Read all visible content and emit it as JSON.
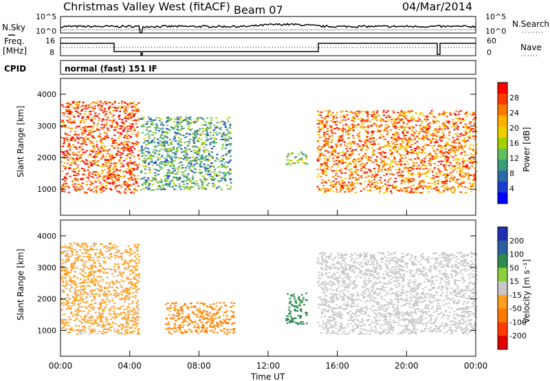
{
  "header": {
    "station": "Christmas Valley West (fitACF)",
    "beam": "Beam 07",
    "date": "04/Mar/2014"
  },
  "left_labels": {
    "nsky": "N.Sky",
    "freq": "Freq.",
    "freq_unit": "[MHz]",
    "cpid": "CPID"
  },
  "right_labels": {
    "nsearch": "N.Search",
    "nave": "Nave"
  },
  "noise_panel": {
    "ytick_top": "10^5",
    "ytick_bottom": "10^0"
  },
  "freq_panel": {
    "left_ticks": [
      "16",
      "8"
    ],
    "right_ticks": [
      "60",
      "0"
    ]
  },
  "cpid_text": "normal (fast) 151 IF",
  "power_scale": {
    "label": "Power [dB]",
    "ticks": [
      "28",
      "24",
      "20",
      "16",
      "12",
      "8",
      "4"
    ],
    "colors": [
      "#ff0000",
      "#ff3a00",
      "#ff7a00",
      "#ffb000",
      "#f0d000",
      "#a8d000",
      "#60c060",
      "#3a9a7a",
      "#2a6aa8",
      "#1a3ad0",
      "#0000ff"
    ]
  },
  "velocity_scale": {
    "label": "Velocity [m s⁻¹]",
    "ticks": [
      "200",
      "100",
      "50",
      "15",
      "-15",
      "-50",
      "-100",
      "-200"
    ],
    "colors": [
      "#2030b0",
      "#2a60a0",
      "#2e8a50",
      "#8ad03a",
      "#c8c8c8",
      "#ffa020",
      "#ff7a00",
      "#ff3a00",
      "#e00000"
    ]
  },
  "x_axis": {
    "ticks": [
      "00:00",
      "04:00",
      "08:00",
      "12:00",
      "16:00",
      "20:00",
      "00:00"
    ],
    "label": "Time UT"
  },
  "chart_data": [
    {
      "type": "heatmap",
      "panel": "power",
      "xlabel": "Time UT",
      "ylabel": "Slant Range [km]",
      "yticks": [
        1000,
        2000,
        3000,
        4000
      ],
      "ylim": [
        180,
        4500
      ],
      "xlim_hours": [
        0,
        24
      ],
      "colorbar": {
        "label": "Power [dB]",
        "ticks": [
          4,
          8,
          12,
          16,
          20,
          24,
          28
        ]
      },
      "regions": [
        {
          "t0": 0.0,
          "t1": 4.5,
          "r0": 900,
          "r1": 3800,
          "value": 26
        },
        {
          "t0": 4.6,
          "t1": 9.8,
          "r0": 1000,
          "r1": 3300,
          "value": 10
        },
        {
          "t0": 13.0,
          "t1": 14.2,
          "r0": 1800,
          "r1": 2200,
          "value": 14
        },
        {
          "t0": 14.8,
          "t1": 24.0,
          "r0": 900,
          "r1": 3500,
          "value": 24
        }
      ]
    },
    {
      "type": "heatmap",
      "panel": "velocity",
      "xlabel": "Time UT",
      "ylabel": "Slant Range [km]",
      "yticks": [
        1000,
        2000,
        3000,
        4000
      ],
      "ylim": [
        180,
        4500
      ],
      "xlim_hours": [
        0,
        24
      ],
      "colorbar": {
        "label": "Velocity [m s⁻¹]",
        "ticks": [
          -200,
          -100,
          -50,
          -15,
          15,
          50,
          100,
          200
        ]
      },
      "regions": [
        {
          "t0": 0.0,
          "t1": 4.5,
          "r0": 900,
          "r1": 3800,
          "value": -20
        },
        {
          "t0": 6.0,
          "t1": 10.0,
          "r0": 900,
          "r1": 1900,
          "value": -50
        },
        {
          "t0": 13.0,
          "t1": 14.2,
          "r0": 1200,
          "r1": 2200,
          "value": 40
        },
        {
          "t0": 14.8,
          "t1": 24.0,
          "r0": 900,
          "r1": 3500,
          "value": 0
        }
      ]
    }
  ]
}
